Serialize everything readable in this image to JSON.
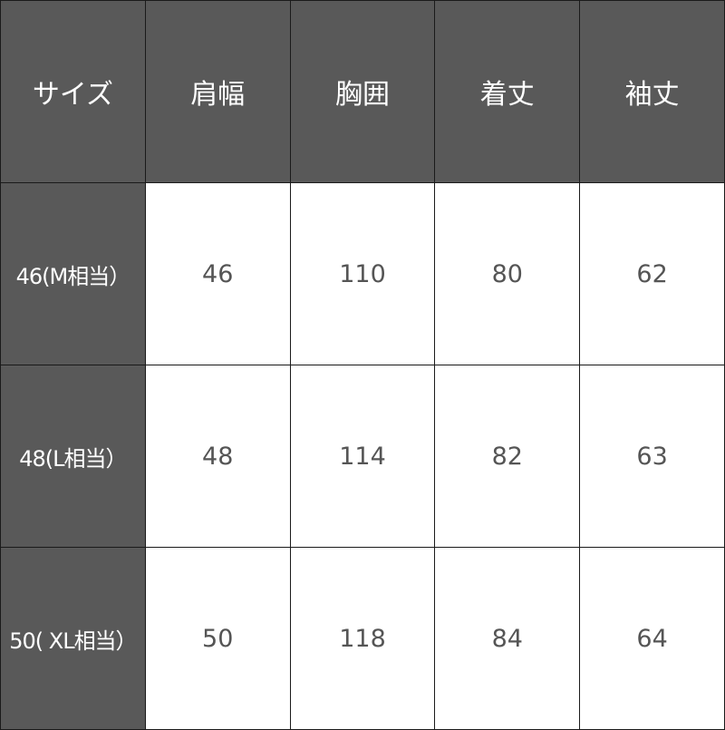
{
  "headers": [
    "サイズ",
    "肩幅",
    "胸囲",
    "着丈",
    "袖丈"
  ],
  "rows": [
    {
      "size": "46(M相当）",
      "values": [
        "46",
        "110",
        "80",
        "62"
      ]
    },
    {
      "size": "48(L相当）",
      "values": [
        "48",
        "114",
        "82",
        "63"
      ]
    },
    {
      "size": "50( XL相当）",
      "values": [
        "50",
        "118",
        "84",
        "64"
      ]
    }
  ],
  "colors": {
    "header_bg": "#595959",
    "header_text": "#ffffff",
    "cell_bg": "#ffffff",
    "cell_text": "#555555",
    "border": "#1a1a1a"
  }
}
